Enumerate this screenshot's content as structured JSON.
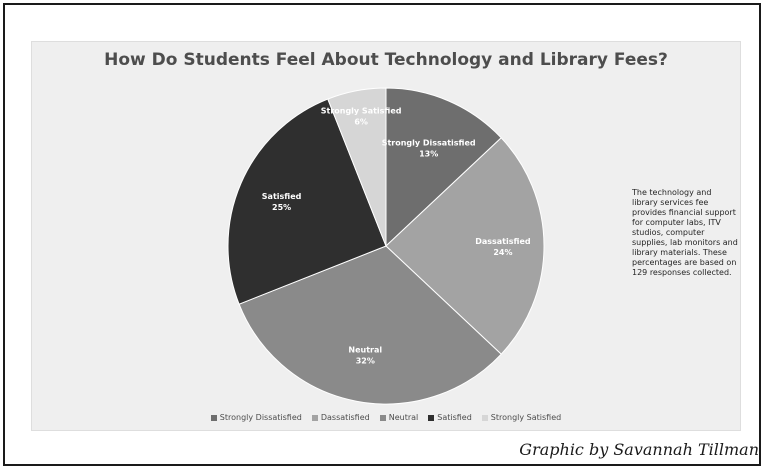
{
  "chart_data": {
    "type": "pie",
    "title": "How Do Students Feel About Technology and Library Fees?",
    "slices": [
      {
        "name": "Strongly Dissatisfied",
        "value": 13,
        "label": "13%",
        "color": "#6e6e6e",
        "label_color": "#ffffff"
      },
      {
        "name": "Dassatisfied",
        "value": 24,
        "label": "24%",
        "color": "#a3a3a3",
        "label_color": "#ffffff"
      },
      {
        "name": "Neutral",
        "value": 32,
        "label": "32%",
        "color": "#8a8a8a",
        "label_color": "#ffffff"
      },
      {
        "name": "Satisfied",
        "value": 25,
        "label": "25%",
        "color": "#2f2f2f",
        "label_color": "#ffffff"
      },
      {
        "name": "Strongly Satisfied",
        "value": 6,
        "label": "6%",
        "color": "#d6d6d6",
        "label_color": "#ffffff"
      }
    ],
    "legend_position": "bottom"
  },
  "note": "The technology and library services fee provides financial support for computer labs, ITV studios, computer supplies, lab monitors and library materials. These percentages are based on 129 responses collected.",
  "credit": "Graphic by Savannah Tillman"
}
